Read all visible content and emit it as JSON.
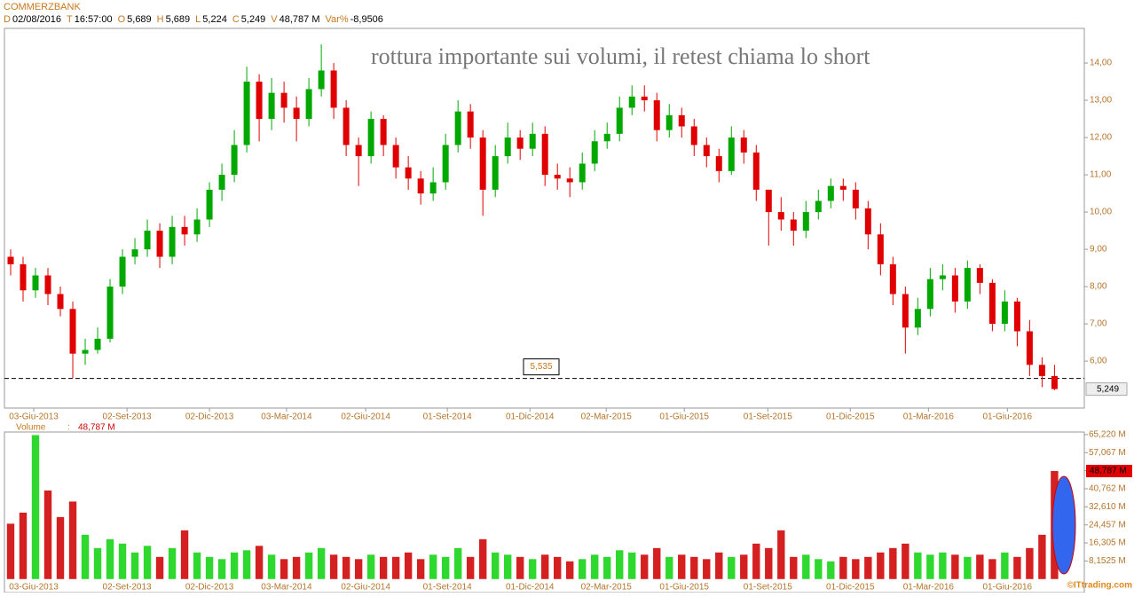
{
  "chart_data": {
    "type": "candlestick",
    "title": "COMMERZBANK",
    "header": [
      {
        "key": "D",
        "value": "02/08/2016"
      },
      {
        "key": "T",
        "value": "16:57:00"
      },
      {
        "key": "O",
        "value": "5,689"
      },
      {
        "key": "H",
        "value": "5,689"
      },
      {
        "key": "L",
        "value": "5,224"
      },
      {
        "key": "C",
        "value": "5,249"
      },
      {
        "key": "V",
        "value": "48,787 M"
      },
      {
        "key": "Var%",
        "value": "-8,9506"
      }
    ],
    "annotation": "rottura importante sui volumi, il retest chiama lo short",
    "level": {
      "value": 5.535,
      "label": "5,535"
    },
    "last_price": {
      "value": 5.249,
      "label": "5,249"
    },
    "up_color": "#00a800",
    "down_color": "#e00000",
    "open": [
      8.8,
      8.6,
      7.9,
      8.3,
      7.8,
      7.4,
      6.2,
      6.3,
      6.6,
      8.0,
      8.8,
      9.0,
      9.5,
      8.8,
      9.6,
      9.4,
      9.8,
      10.6,
      11.0,
      11.8,
      13.5,
      12.5,
      13.2,
      12.8,
      12.5,
      13.3,
      13.8,
      12.8,
      11.8,
      11.5,
      12.5,
      11.8,
      11.2,
      10.9,
      10.5,
      10.8,
      11.8,
      12.7,
      12.0,
      10.6,
      11.5,
      12.0,
      11.7,
      12.1,
      11.0,
      10.9,
      10.8,
      11.3,
      11.9,
      12.1,
      12.8,
      13.1,
      13.0,
      12.2,
      12.6,
      12.3,
      11.8,
      11.5,
      11.1,
      12.0,
      11.6,
      10.6,
      10.0,
      9.8,
      9.5,
      10.0,
      10.3,
      10.7,
      10.6,
      10.1,
      9.4,
      8.6,
      7.8,
      6.9,
      7.4,
      8.2,
      8.3,
      7.6,
      8.5,
      8.1,
      7.0,
      7.6,
      6.8,
      5.9,
      5.6
    ],
    "high": [
      9.0,
      8.8,
      8.5,
      8.5,
      8.0,
      7.6,
      6.6,
      6.9,
      8.2,
      9.0,
      9.3,
      9.8,
      9.7,
      9.9,
      9.9,
      10.1,
      10.8,
      11.3,
      12.2,
      13.9,
      13.7,
      13.6,
      13.5,
      13.1,
      13.6,
      14.5,
      14.0,
      13.0,
      12.0,
      12.7,
      12.6,
      12.0,
      11.5,
      11.1,
      11.2,
      12.1,
      13.0,
      12.9,
      12.2,
      11.8,
      12.4,
      12.2,
      12.4,
      12.3,
      11.3,
      11.2,
      11.6,
      12.2,
      12.4,
      13.1,
      13.4,
      13.4,
      13.2,
      12.9,
      12.8,
      12.5,
      12.0,
      11.7,
      12.3,
      12.2,
      11.8,
      10.6,
      10.4,
      10.0,
      10.3,
      10.6,
      10.9,
      10.9,
      10.8,
      10.3,
      9.7,
      8.8,
      8.0,
      7.7,
      8.5,
      8.6,
      8.5,
      8.7,
      8.6,
      8.2,
      7.9,
      7.7,
      7.1,
      6.1,
      5.9
    ],
    "low": [
      8.3,
      7.6,
      7.7,
      7.5,
      7.2,
      5.55,
      5.9,
      6.2,
      6.5,
      7.8,
      8.6,
      8.8,
      8.5,
      8.6,
      9.1,
      9.2,
      9.6,
      10.3,
      10.8,
      11.6,
      11.9,
      12.2,
      12.4,
      11.9,
      12.3,
      13.1,
      12.5,
      11.5,
      10.7,
      11.3,
      11.5,
      10.9,
      10.6,
      10.2,
      10.3,
      10.6,
      11.6,
      11.7,
      9.9,
      10.4,
      11.3,
      11.4,
      11.5,
      10.7,
      10.6,
      10.4,
      10.6,
      11.1,
      11.7,
      11.9,
      12.6,
      12.7,
      11.9,
      12.0,
      12.0,
      11.5,
      11.2,
      10.8,
      11.0,
      11.3,
      10.3,
      9.1,
      9.5,
      9.1,
      9.3,
      9.8,
      10.1,
      10.3,
      9.8,
      9.0,
      8.3,
      7.5,
      6.2,
      6.7,
      7.2,
      7.9,
      7.3,
      7.4,
      7.8,
      6.8,
      6.8,
      6.4,
      5.6,
      5.3,
      5.22
    ],
    "close": [
      8.6,
      7.9,
      8.3,
      7.8,
      7.4,
      6.2,
      6.3,
      6.6,
      8.0,
      8.8,
      9.0,
      9.5,
      8.8,
      9.6,
      9.4,
      9.8,
      10.6,
      11.0,
      11.8,
      13.5,
      12.5,
      13.2,
      12.8,
      12.5,
      13.3,
      13.8,
      12.8,
      11.8,
      11.5,
      12.5,
      11.8,
      11.2,
      10.9,
      10.5,
      10.8,
      11.8,
      12.7,
      12.0,
      10.6,
      11.5,
      12.0,
      11.7,
      12.1,
      11.0,
      10.9,
      10.8,
      11.3,
      11.9,
      12.1,
      12.8,
      13.1,
      13.0,
      12.2,
      12.6,
      12.3,
      11.8,
      11.5,
      11.1,
      12.0,
      11.6,
      10.6,
      10.0,
      9.8,
      9.5,
      10.0,
      10.3,
      10.7,
      10.6,
      10.1,
      9.4,
      8.6,
      7.8,
      6.9,
      7.4,
      8.2,
      8.3,
      7.6,
      8.5,
      8.1,
      7.0,
      7.6,
      6.8,
      5.9,
      5.6,
      5.25
    ],
    "ylim": [
      4.74,
      14.93
    ],
    "yticks": [
      {
        "value": 6,
        "label": "6,00"
      },
      {
        "value": 7,
        "label": "7,00"
      },
      {
        "value": 8,
        "label": "8,00"
      },
      {
        "value": 9,
        "label": "9,00"
      },
      {
        "value": 10,
        "label": "10,00"
      },
      {
        "value": 11,
        "label": "11,00"
      },
      {
        "value": 12,
        "label": "12,00"
      },
      {
        "value": 13,
        "label": "13,00"
      },
      {
        "value": 14,
        "label": "14,00"
      }
    ],
    "xlim": [
      0,
      86.9
    ],
    "xticks": [
      {
        "value": 2.36,
        "label": "03-Giu-2013"
      },
      {
        "value": 9.86,
        "label": "02-Set-2013"
      },
      {
        "value": 16.5,
        "label": "02-Dic-2013"
      },
      {
        "value": 22.7,
        "label": "03-Mar-2014"
      },
      {
        "value": 29.07,
        "label": "02-Giu-2014"
      },
      {
        "value": 35.64,
        "label": "01-Set-2014"
      },
      {
        "value": 42.29,
        "label": "01-Dic-2014"
      },
      {
        "value": 48.43,
        "label": "02-Mar-2015"
      },
      {
        "value": 54.71,
        "label": "01-Giu-2015"
      },
      {
        "value": 61.43,
        "label": "01-Set-2015"
      },
      {
        "value": 68.07,
        "label": "01-Dic-2015"
      },
      {
        "value": 74.36,
        "label": "01-Mar-2016"
      },
      {
        "value": 80.71,
        "label": "01-Giu-2016"
      }
    ],
    "volume": {
      "name": "Volume",
      "separator": ":",
      "last": {
        "value": 48.787,
        "label": "48,787 M"
      },
      "up_color": "#2ed82e",
      "down_color": "#d42020",
      "values": [
        25,
        30,
        65,
        40,
        28,
        35,
        20,
        14,
        18,
        16,
        12,
        15,
        10,
        14,
        22,
        12,
        10,
        9,
        12,
        13,
        15,
        11,
        9,
        10,
        12,
        14,
        11,
        10,
        9,
        11,
        10,
        10,
        12,
        9,
        11,
        10,
        14,
        10,
        18,
        12,
        11,
        10,
        9,
        11,
        10,
        8,
        9,
        11,
        10,
        13,
        12,
        11,
        14,
        10,
        11,
        10,
        9,
        12,
        10,
        11,
        16,
        14,
        22,
        10,
        11,
        9,
        8,
        10,
        9,
        10,
        12,
        14,
        16,
        12,
        11,
        12,
        11,
        10,
        11,
        9,
        12,
        10,
        14,
        20,
        48.787
      ],
      "ylim": [
        -6.1,
        66.4
      ],
      "yticks": [
        {
          "value": 65.22,
          "label": "65,220 M"
        },
        {
          "value": 57.067,
          "label": "57,067 M"
        },
        {
          "value": 48.915,
          "label": "48,915 M"
        },
        {
          "value": 40.762,
          "label": "40,762 M"
        },
        {
          "value": 32.61,
          "label": "32,610 M"
        },
        {
          "value": 24.457,
          "label": "24,457 M"
        },
        {
          "value": 16.305,
          "label": "16,305 M"
        },
        {
          "value": 8.1525,
          "label": "8,1525 M"
        }
      ]
    },
    "watermark": "©ITtrading.com"
  }
}
